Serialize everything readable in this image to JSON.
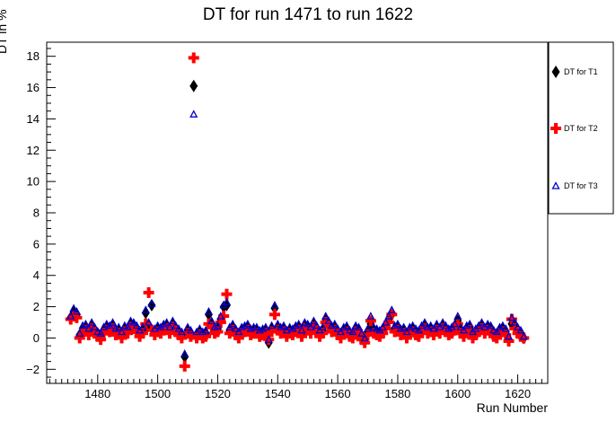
{
  "chart_data": {
    "type": "scatter",
    "title": "DT for run 1471 to run 1622",
    "xlabel": "Run Number",
    "ylabel": "DT in %",
    "xlim": [
      1463,
      1630
    ],
    "ylim": [
      -2.9,
      18.9
    ],
    "xticks": [
      1480,
      1500,
      1520,
      1540,
      1560,
      1580,
      1600,
      1620
    ],
    "yticks": [
      -2,
      0,
      2,
      4,
      6,
      8,
      10,
      12,
      14,
      16,
      18
    ],
    "ytick_labels": [
      "−2",
      "0",
      "2",
      "4",
      "6",
      "8",
      "10",
      "12",
      "14",
      "16",
      "18"
    ],
    "grid": false,
    "legend_position": "right",
    "series": [
      {
        "name": "DT for T1",
        "marker": "diamond",
        "color": "#000000",
        "x": [
          1471,
          1472,
          1473,
          1474,
          1475,
          1476,
          1477,
          1478,
          1479,
          1480,
          1481,
          1482,
          1483,
          1484,
          1485,
          1486,
          1487,
          1488,
          1489,
          1490,
          1491,
          1492,
          1493,
          1494,
          1495,
          1496,
          1497,
          1498,
          1499,
          1500,
          1501,
          1502,
          1503,
          1504,
          1505,
          1506,
          1507,
          1508,
          1509,
          1510,
          1511,
          1512,
          1513,
          1514,
          1515,
          1516,
          1517,
          1518,
          1519,
          1520,
          1521,
          1522,
          1523,
          1524,
          1525,
          1526,
          1527,
          1528,
          1529,
          1530,
          1531,
          1532,
          1533,
          1534,
          1535,
          1536,
          1537,
          1538,
          1539,
          1540,
          1541,
          1542,
          1543,
          1544,
          1545,
          1546,
          1547,
          1548,
          1549,
          1550,
          1551,
          1552,
          1553,
          1554,
          1555,
          1556,
          1557,
          1558,
          1559,
          1560,
          1561,
          1562,
          1563,
          1564,
          1565,
          1566,
          1567,
          1568,
          1569,
          1570,
          1571,
          1572,
          1573,
          1574,
          1575,
          1576,
          1577,
          1578,
          1579,
          1580,
          1581,
          1582,
          1583,
          1584,
          1585,
          1586,
          1587,
          1588,
          1589,
          1590,
          1591,
          1592,
          1593,
          1594,
          1595,
          1596,
          1597,
          1598,
          1599,
          1600,
          1601,
          1602,
          1603,
          1604,
          1605,
          1606,
          1607,
          1608,
          1609,
          1610,
          1611,
          1612,
          1613,
          1614,
          1615,
          1616,
          1617,
          1618,
          1619,
          1620,
          1621,
          1622
        ],
        "y": [
          1.3,
          1.7,
          1.5,
          0.2,
          0.5,
          0.7,
          0.4,
          0.8,
          0.5,
          0.3,
          0.1,
          0.5,
          0.7,
          0.6,
          0.8,
          0.4,
          0.5,
          0.2,
          0.6,
          0.5,
          0.9,
          0.8,
          0.6,
          0.3,
          0.5,
          1.6,
          0.8,
          2.1,
          0.4,
          0.6,
          0.5,
          0.7,
          0.8,
          0.5,
          0.9,
          0.6,
          0.4,
          0.2,
          -1.2,
          0.5,
          0.3,
          16.1,
          0.2,
          0.4,
          0.2,
          0.3,
          1.5,
          0.9,
          0.5,
          0.6,
          1.2,
          2.0,
          2.1,
          0.5,
          0.7,
          0.4,
          0.2,
          0.5,
          0.6,
          0.7,
          0.4,
          0.5,
          0.5,
          0.3,
          0.4,
          0.5,
          -0.3,
          0.6,
          1.9,
          0.7,
          0.5,
          0.6,
          0.3,
          0.5,
          0.4,
          0.6,
          0.7,
          0.3,
          0.8,
          0.7,
          0.5,
          0.9,
          0.6,
          0.3,
          0.5,
          1.2,
          0.9,
          0.6,
          0.7,
          0.4,
          0.2,
          0.5,
          0.6,
          0.3,
          0.2,
          0.6,
          0.5,
          0.1,
          -0.2,
          0.4,
          0.9,
          0.5,
          0.4,
          0.3,
          0.5,
          0.8,
          1.2,
          1.5,
          0.6,
          0.7,
          0.4,
          0.5,
          0.2,
          0.5,
          0.6,
          0.4,
          0.3,
          0.6,
          0.8,
          0.5,
          0.6,
          0.4,
          0.7,
          0.5,
          0.8,
          0.6,
          0.4,
          0.5,
          0.7,
          1.1,
          0.5,
          0.3,
          0.6,
          0.7,
          0.2,
          0.4,
          0.6,
          0.8,
          0.5,
          0.7,
          0.6,
          0.3,
          0.2,
          0.5,
          0.6,
          0.4,
          -0.1,
          0.9,
          0.8,
          0.5,
          0.3,
          0.0
        ]
      },
      {
        "name": "DT for T2",
        "marker": "cross",
        "color": "#ff0000",
        "x": [
          1471,
          1472,
          1473,
          1474,
          1475,
          1476,
          1477,
          1478,
          1479,
          1480,
          1481,
          1482,
          1483,
          1484,
          1485,
          1486,
          1487,
          1488,
          1489,
          1490,
          1491,
          1492,
          1493,
          1494,
          1495,
          1496,
          1497,
          1498,
          1499,
          1500,
          1501,
          1502,
          1503,
          1504,
          1505,
          1506,
          1507,
          1508,
          1509,
          1510,
          1511,
          1512,
          1513,
          1514,
          1515,
          1516,
          1517,
          1518,
          1519,
          1520,
          1521,
          1522,
          1523,
          1524,
          1525,
          1526,
          1527,
          1528,
          1529,
          1530,
          1531,
          1532,
          1533,
          1534,
          1535,
          1536,
          1537,
          1538,
          1539,
          1540,
          1541,
          1542,
          1543,
          1544,
          1545,
          1546,
          1547,
          1548,
          1549,
          1550,
          1551,
          1552,
          1553,
          1554,
          1555,
          1556,
          1557,
          1558,
          1559,
          1560,
          1561,
          1562,
          1563,
          1564,
          1565,
          1566,
          1567,
          1568,
          1569,
          1570,
          1571,
          1572,
          1573,
          1574,
          1575,
          1576,
          1577,
          1578,
          1579,
          1580,
          1581,
          1582,
          1583,
          1584,
          1585,
          1586,
          1587,
          1588,
          1589,
          1590,
          1591,
          1592,
          1593,
          1594,
          1595,
          1596,
          1597,
          1598,
          1599,
          1600,
          1601,
          1602,
          1603,
          1604,
          1605,
          1606,
          1607,
          1608,
          1609,
          1610,
          1611,
          1612,
          1613,
          1614,
          1615,
          1616,
          1617,
          1618,
          1619,
          1620,
          1621,
          1622
        ],
        "y": [
          1.2,
          1.4,
          1.3,
          0.0,
          0.3,
          0.5,
          0.2,
          0.6,
          0.3,
          0.1,
          -0.1,
          0.3,
          0.5,
          0.4,
          0.6,
          0.2,
          0.3,
          0.0,
          0.4,
          0.3,
          0.7,
          0.6,
          0.4,
          0.1,
          0.3,
          0.9,
          2.9,
          0.5,
          0.2,
          0.4,
          0.3,
          0.5,
          0.6,
          0.3,
          0.7,
          0.4,
          0.2,
          0.0,
          -1.8,
          0.3,
          0.1,
          17.9,
          0.0,
          0.2,
          0.0,
          0.1,
          0.9,
          0.7,
          0.3,
          0.4,
          1.0,
          1.4,
          2.8,
          0.3,
          0.5,
          0.2,
          0.0,
          0.3,
          0.4,
          0.5,
          0.2,
          0.3,
          0.3,
          0.1,
          0.2,
          0.3,
          -0.1,
          0.4,
          1.5,
          0.5,
          0.3,
          0.4,
          0.1,
          0.3,
          0.2,
          0.4,
          0.5,
          0.1,
          0.6,
          0.5,
          0.3,
          0.7,
          0.4,
          0.1,
          0.3,
          1.0,
          0.7,
          0.4,
          0.5,
          0.2,
          0.0,
          0.3,
          0.4,
          0.1,
          0.0,
          0.4,
          0.3,
          -0.1,
          -0.3,
          0.2,
          1.1,
          0.3,
          0.2,
          0.1,
          0.3,
          0.6,
          1.0,
          1.5,
          0.4,
          0.5,
          0.2,
          0.3,
          0.0,
          0.3,
          0.4,
          0.2,
          0.1,
          0.4,
          0.6,
          0.3,
          0.4,
          0.2,
          0.5,
          0.3,
          0.6,
          0.4,
          0.2,
          0.3,
          0.5,
          0.9,
          0.3,
          0.1,
          0.4,
          0.5,
          0.0,
          0.2,
          0.4,
          0.6,
          0.3,
          0.5,
          0.4,
          0.1,
          0.0,
          0.3,
          0.4,
          0.2,
          -0.2,
          1.2,
          0.6,
          0.3,
          0.1,
          0.0
        ]
      },
      {
        "name": "DT for T3",
        "marker": "triangle",
        "color": "#0000cc",
        "x": [
          1471,
          1472,
          1473,
          1474,
          1475,
          1476,
          1477,
          1478,
          1479,
          1480,
          1481,
          1482,
          1483,
          1484,
          1485,
          1486,
          1487,
          1488,
          1489,
          1490,
          1491,
          1492,
          1493,
          1494,
          1495,
          1496,
          1497,
          1498,
          1499,
          1500,
          1501,
          1502,
          1503,
          1504,
          1505,
          1506,
          1507,
          1508,
          1509,
          1510,
          1511,
          1512,
          1513,
          1514,
          1515,
          1516,
          1517,
          1518,
          1519,
          1520,
          1521,
          1522,
          1523,
          1524,
          1525,
          1526,
          1527,
          1528,
          1529,
          1530,
          1531,
          1532,
          1533,
          1534,
          1535,
          1536,
          1537,
          1538,
          1539,
          1540,
          1541,
          1542,
          1543,
          1544,
          1545,
          1546,
          1547,
          1548,
          1549,
          1550,
          1551,
          1552,
          1553,
          1554,
          1555,
          1556,
          1557,
          1558,
          1559,
          1560,
          1561,
          1562,
          1563,
          1564,
          1565,
          1566,
          1567,
          1568,
          1569,
          1570,
          1571,
          1572,
          1573,
          1574,
          1575,
          1576,
          1577,
          1578,
          1579,
          1580,
          1581,
          1582,
          1583,
          1584,
          1585,
          1586,
          1587,
          1588,
          1589,
          1590,
          1591,
          1592,
          1593,
          1594,
          1595,
          1596,
          1597,
          1598,
          1599,
          1600,
          1601,
          1602,
          1603,
          1604,
          1605,
          1606,
          1607,
          1608,
          1609,
          1610,
          1611,
          1612,
          1613,
          1614,
          1615,
          1616,
          1617,
          1618,
          1619,
          1620,
          1621,
          1622
        ],
        "y": [
          1.4,
          1.9,
          1.7,
          0.3,
          0.8,
          0.9,
          0.6,
          1.0,
          0.7,
          0.4,
          0.3,
          0.7,
          0.9,
          0.8,
          1.0,
          0.6,
          0.7,
          0.4,
          0.8,
          0.7,
          1.1,
          1.0,
          0.8,
          0.5,
          0.7,
          1.8,
          1.0,
          2.2,
          0.6,
          0.8,
          0.7,
          0.9,
          1.0,
          0.7,
          1.1,
          0.8,
          0.6,
          0.4,
          -1.0,
          0.7,
          0.5,
          14.3,
          0.4,
          0.6,
          0.4,
          0.5,
          1.7,
          1.1,
          0.7,
          0.8,
          1.4,
          2.1,
          2.3,
          0.7,
          0.9,
          0.6,
          0.4,
          0.7,
          0.8,
          0.9,
          0.6,
          0.7,
          0.7,
          0.5,
          0.6,
          0.7,
          -0.1,
          0.8,
          2.1,
          0.9,
          0.7,
          0.8,
          0.5,
          0.7,
          0.6,
          0.8,
          0.9,
          0.5,
          1.0,
          0.9,
          0.7,
          1.1,
          0.8,
          0.5,
          0.7,
          1.4,
          1.1,
          0.8,
          0.9,
          0.6,
          0.4,
          0.7,
          0.8,
          0.5,
          0.4,
          0.8,
          0.7,
          0.3,
          0.0,
          0.6,
          1.4,
          0.7,
          0.6,
          0.5,
          0.7,
          1.0,
          1.4,
          1.8,
          0.8,
          0.9,
          0.6,
          0.7,
          0.4,
          0.7,
          0.8,
          0.6,
          0.5,
          0.8,
          1.0,
          0.7,
          0.8,
          0.6,
          0.9,
          0.7,
          1.0,
          0.8,
          0.6,
          0.7,
          0.9,
          1.4,
          0.7,
          0.5,
          0.8,
          0.9,
          0.4,
          0.6,
          0.8,
          1.0,
          0.7,
          0.9,
          0.8,
          0.5,
          0.4,
          0.7,
          0.8,
          0.6,
          0.1,
          1.3,
          1.0,
          0.7,
          0.5,
          0.1
        ]
      }
    ]
  }
}
